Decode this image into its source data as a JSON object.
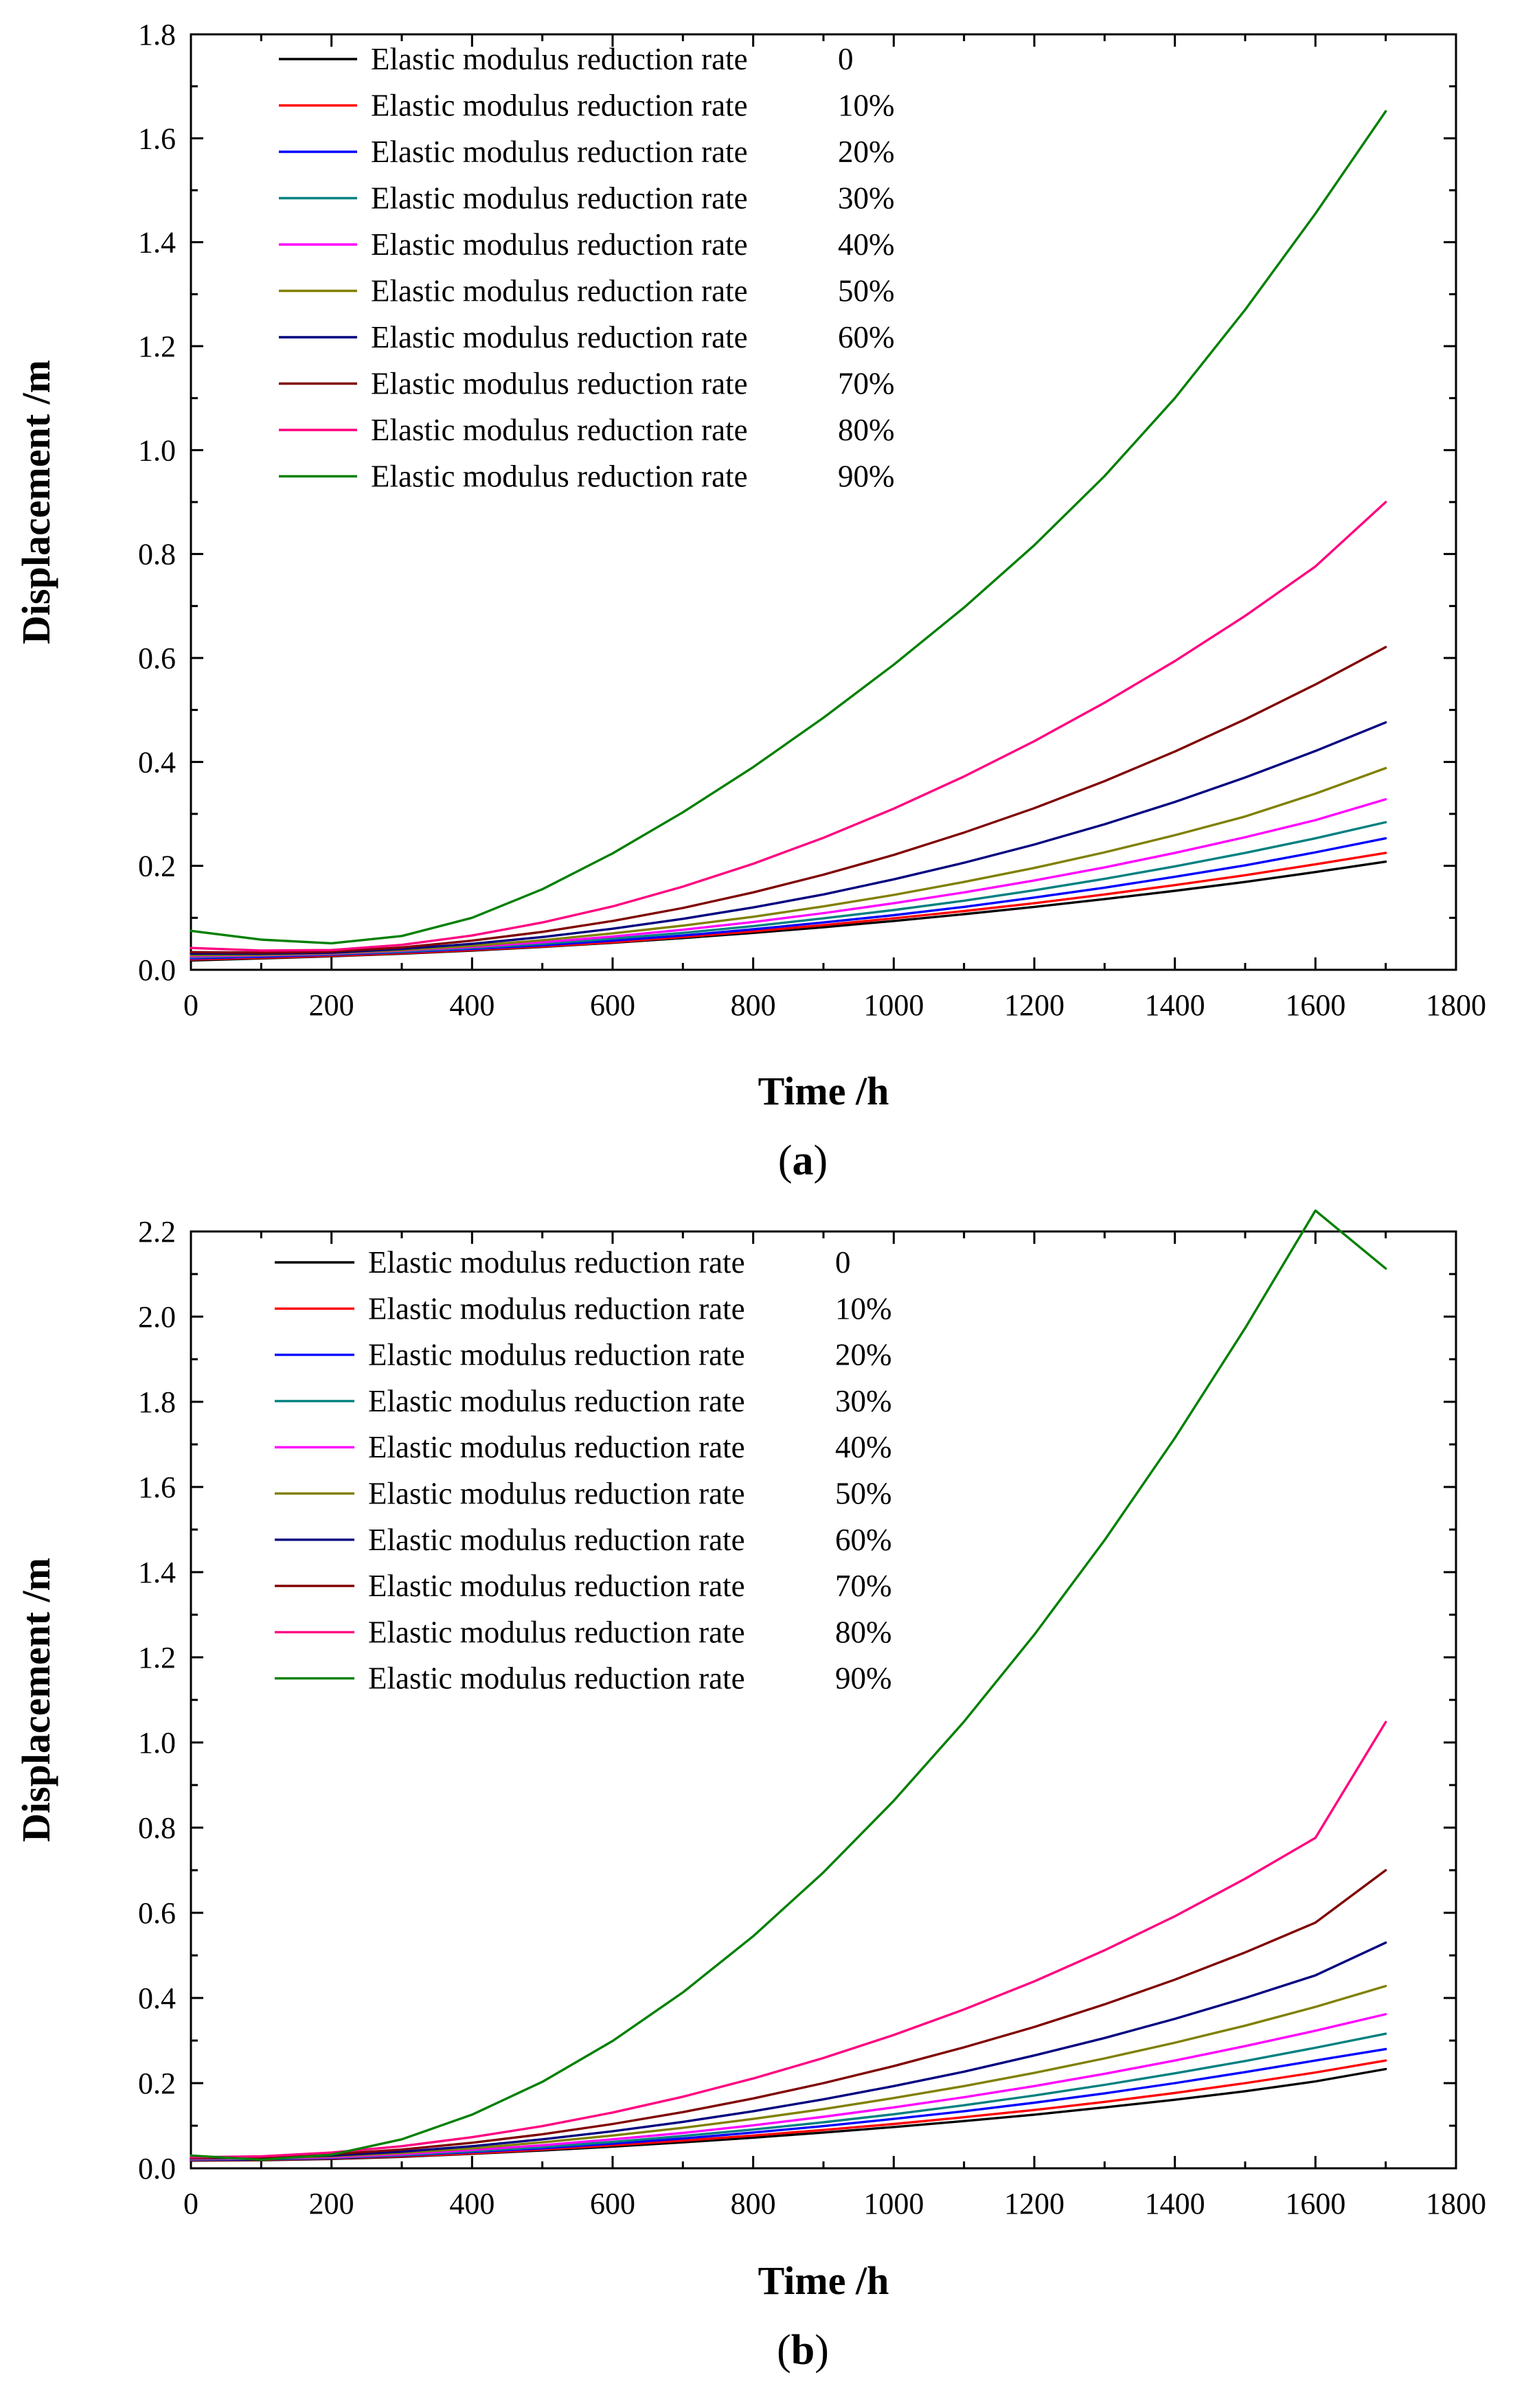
{
  "chart_data": [
    {
      "type": "line",
      "panel_label": "a",
      "xlabel": "Time /h",
      "ylabel": "Displacement /m",
      "xlim": [
        0,
        1800
      ],
      "ylim": [
        0,
        1.8
      ],
      "x_ticks": [
        0,
        200,
        400,
        600,
        800,
        1000,
        1200,
        1400,
        1600,
        1800
      ],
      "x_tick_labels": [
        "0",
        "200",
        "400",
        "600",
        "800",
        "1000",
        "1200",
        "1400",
        "1600",
        "1800"
      ],
      "y_ticks": [
        0,
        0.2,
        0.4,
        0.6,
        0.8,
        1.0,
        1.2,
        1.4,
        1.6,
        1.8
      ],
      "y_tick_labels": [
        "0.0",
        "0.2",
        "0.4",
        "0.6",
        "0.8",
        "1.0",
        "1.2",
        "1.4",
        "1.6",
        "1.8"
      ],
      "grid": false,
      "legend_position": "top-left",
      "x": [
        0,
        100,
        200,
        300,
        400,
        500,
        600,
        700,
        800,
        900,
        1000,
        1100,
        1200,
        1300,
        1400,
        1500,
        1600,
        1700
      ],
      "series": [
        {
          "name": "Elastic modulus reduction rate",
          "value_label": "0",
          "color": "#000000",
          "values": [
            0.018,
            0.022,
            0.026,
            0.031,
            0.037,
            0.044,
            0.052,
            0.061,
            0.071,
            0.082,
            0.094,
            0.107,
            0.121,
            0.136,
            0.152,
            0.169,
            0.188,
            0.208
          ]
        },
        {
          "name": "Elastic modulus reduction rate",
          "value_label": "10%",
          "color": "#ff0000",
          "values": [
            0.02,
            0.023,
            0.027,
            0.032,
            0.038,
            0.045,
            0.053,
            0.063,
            0.074,
            0.086,
            0.099,
            0.113,
            0.128,
            0.145,
            0.163,
            0.182,
            0.203,
            0.225
          ]
        },
        {
          "name": "Elastic modulus reduction rate",
          "value_label": "20%",
          "color": "#0000ff",
          "values": [
            0.022,
            0.025,
            0.029,
            0.034,
            0.04,
            0.047,
            0.056,
            0.066,
            0.078,
            0.091,
            0.105,
            0.121,
            0.139,
            0.158,
            0.179,
            0.201,
            0.226,
            0.253
          ]
        },
        {
          "name": "Elastic modulus reduction rate",
          "value_label": "30%",
          "color": "#008080",
          "values": [
            0.024,
            0.027,
            0.03,
            0.035,
            0.042,
            0.05,
            0.06,
            0.071,
            0.084,
            0.099,
            0.115,
            0.133,
            0.153,
            0.175,
            0.199,
            0.225,
            0.253,
            0.284
          ]
        },
        {
          "name": "Elastic modulus reduction rate",
          "value_label": "40%",
          "color": "#ff00ff",
          "values": [
            0.026,
            0.028,
            0.031,
            0.037,
            0.044,
            0.053,
            0.064,
            0.077,
            0.092,
            0.109,
            0.128,
            0.149,
            0.172,
            0.197,
            0.225,
            0.255,
            0.288,
            0.328
          ]
        },
        {
          "name": "Elastic modulus reduction rate",
          "value_label": "50%",
          "color": "#808000",
          "values": [
            0.028,
            0.029,
            0.032,
            0.038,
            0.046,
            0.057,
            0.07,
            0.085,
            0.102,
            0.122,
            0.144,
            0.169,
            0.196,
            0.226,
            0.259,
            0.295,
            0.339,
            0.388
          ]
        },
        {
          "name": "Elastic modulus reduction rate",
          "value_label": "60%",
          "color": "#000080",
          "values": [
            0.031,
            0.031,
            0.033,
            0.04,
            0.05,
            0.063,
            0.079,
            0.098,
            0.12,
            0.145,
            0.174,
            0.206,
            0.241,
            0.28,
            0.323,
            0.37,
            0.421,
            0.476
          ]
        },
        {
          "name": "Elastic modulus reduction rate",
          "value_label": "70%",
          "color": "#800000",
          "values": [
            0.034,
            0.033,
            0.035,
            0.043,
            0.056,
            0.073,
            0.094,
            0.119,
            0.149,
            0.183,
            0.221,
            0.264,
            0.311,
            0.363,
            0.42,
            0.482,
            0.549,
            0.621
          ]
        },
        {
          "name": "Elastic modulus reduction rate",
          "value_label": "80%",
          "color": "#ff0080",
          "values": [
            0.042,
            0.037,
            0.038,
            0.048,
            0.066,
            0.091,
            0.122,
            0.16,
            0.204,
            0.254,
            0.31,
            0.372,
            0.44,
            0.514,
            0.594,
            0.681,
            0.776,
            0.9
          ]
        },
        {
          "name": "Elastic modulus reduction rate",
          "value_label": "90%",
          "color": "#008000",
          "values": [
            0.075,
            0.058,
            0.051,
            0.065,
            0.1,
            0.155,
            0.224,
            0.303,
            0.39,
            0.485,
            0.587,
            0.697,
            0.817,
            0.95,
            1.1,
            1.27,
            1.455,
            1.652
          ]
        }
      ]
    },
    {
      "type": "line",
      "panel_label": "b",
      "xlabel": "Time /h",
      "ylabel": "Displacement /m",
      "xlim": [
        0,
        1800
      ],
      "ylim": [
        0,
        2.2
      ],
      "x_ticks": [
        0,
        200,
        400,
        600,
        800,
        1000,
        1200,
        1400,
        1600,
        1800
      ],
      "x_tick_labels": [
        "0",
        "200",
        "400",
        "600",
        "800",
        "1000",
        "1200",
        "1400",
        "1600",
        "1800"
      ],
      "y_ticks": [
        0,
        0.2,
        0.4,
        0.6,
        0.8,
        1.0,
        1.2,
        1.4,
        1.6,
        1.8,
        2.0,
        2.2
      ],
      "y_tick_labels": [
        "0.0",
        "0.2",
        "0.4",
        "0.6",
        "0.8",
        "1.0",
        "1.2",
        "1.4",
        "1.6",
        "1.8",
        "2.0",
        "2.2"
      ],
      "grid": false,
      "legend_position": "top-left",
      "x": [
        0,
        100,
        200,
        300,
        400,
        500,
        600,
        700,
        800,
        900,
        1000,
        1100,
        1200,
        1300,
        1400,
        1500,
        1600,
        1700
      ],
      "series": [
        {
          "name": "Elastic modulus reduction rate",
          "value_label": "0",
          "color": "#000000",
          "values": [
            0.018,
            0.019,
            0.022,
            0.027,
            0.034,
            0.042,
            0.051,
            0.061,
            0.072,
            0.084,
            0.097,
            0.111,
            0.126,
            0.143,
            0.161,
            0.181,
            0.204,
            0.233
          ]
        },
        {
          "name": "Elastic modulus reduction rate",
          "value_label": "10%",
          "color": "#ff0000",
          "values": [
            0.019,
            0.02,
            0.023,
            0.028,
            0.035,
            0.044,
            0.054,
            0.065,
            0.077,
            0.09,
            0.104,
            0.12,
            0.137,
            0.156,
            0.177,
            0.2,
            0.225,
            0.253
          ]
        },
        {
          "name": "Elastic modulus reduction rate",
          "value_label": "20%",
          "color": "#0000ff",
          "values": [
            0.02,
            0.021,
            0.024,
            0.03,
            0.038,
            0.047,
            0.058,
            0.07,
            0.084,
            0.099,
            0.116,
            0.134,
            0.154,
            0.176,
            0.2,
            0.226,
            0.253,
            0.28
          ]
        },
        {
          "name": "Elastic modulus reduction rate",
          "value_label": "30%",
          "color": "#008080",
          "values": [
            0.021,
            0.022,
            0.025,
            0.031,
            0.04,
            0.05,
            0.062,
            0.076,
            0.091,
            0.108,
            0.127,
            0.148,
            0.171,
            0.196,
            0.223,
            0.252,
            0.283,
            0.316
          ]
        },
        {
          "name": "Elastic modulus reduction rate",
          "value_label": "40%",
          "color": "#ff00ff",
          "values": [
            0.022,
            0.023,
            0.026,
            0.033,
            0.043,
            0.054,
            0.068,
            0.083,
            0.101,
            0.121,
            0.143,
            0.167,
            0.193,
            0.222,
            0.253,
            0.287,
            0.323,
            0.362
          ]
        },
        {
          "name": "Elastic modulus reduction rate",
          "value_label": "50%",
          "color": "#808000",
          "values": [
            0.023,
            0.024,
            0.028,
            0.036,
            0.047,
            0.061,
            0.077,
            0.095,
            0.116,
            0.139,
            0.165,
            0.193,
            0.224,
            0.258,
            0.295,
            0.335,
            0.379,
            0.428
          ]
        },
        {
          "name": "Elastic modulus reduction rate",
          "value_label": "60%",
          "color": "#000080",
          "values": [
            0.024,
            0.025,
            0.03,
            0.039,
            0.052,
            0.068,
            0.087,
            0.109,
            0.134,
            0.162,
            0.193,
            0.227,
            0.265,
            0.306,
            0.351,
            0.4,
            0.453,
            0.53
          ]
        },
        {
          "name": "Elastic modulus reduction rate",
          "value_label": "70%",
          "color": "#800000",
          "values": [
            0.025,
            0.026,
            0.033,
            0.044,
            0.06,
            0.08,
            0.104,
            0.132,
            0.164,
            0.2,
            0.24,
            0.284,
            0.332,
            0.385,
            0.443,
            0.507,
            0.577,
            0.7
          ]
        },
        {
          "name": "Elastic modulus reduction rate",
          "value_label": "80%",
          "color": "#ff0080",
          "values": [
            0.026,
            0.028,
            0.037,
            0.052,
            0.073,
            0.099,
            0.131,
            0.168,
            0.211,
            0.259,
            0.313,
            0.373,
            0.439,
            0.512,
            0.592,
            0.68,
            0.776,
            1.048
          ]
        },
        {
          "name": "Elastic modulus reduction rate",
          "value_label": "90%",
          "color": "#008000",
          "values": [
            0.03,
            0.02,
            0.032,
            0.068,
            0.126,
            0.203,
            0.299,
            0.413,
            0.545,
            0.695,
            0.863,
            1.049,
            1.253,
            1.475,
            1.715,
            1.973,
            2.249,
            2.113
          ]
        }
      ]
    }
  ]
}
